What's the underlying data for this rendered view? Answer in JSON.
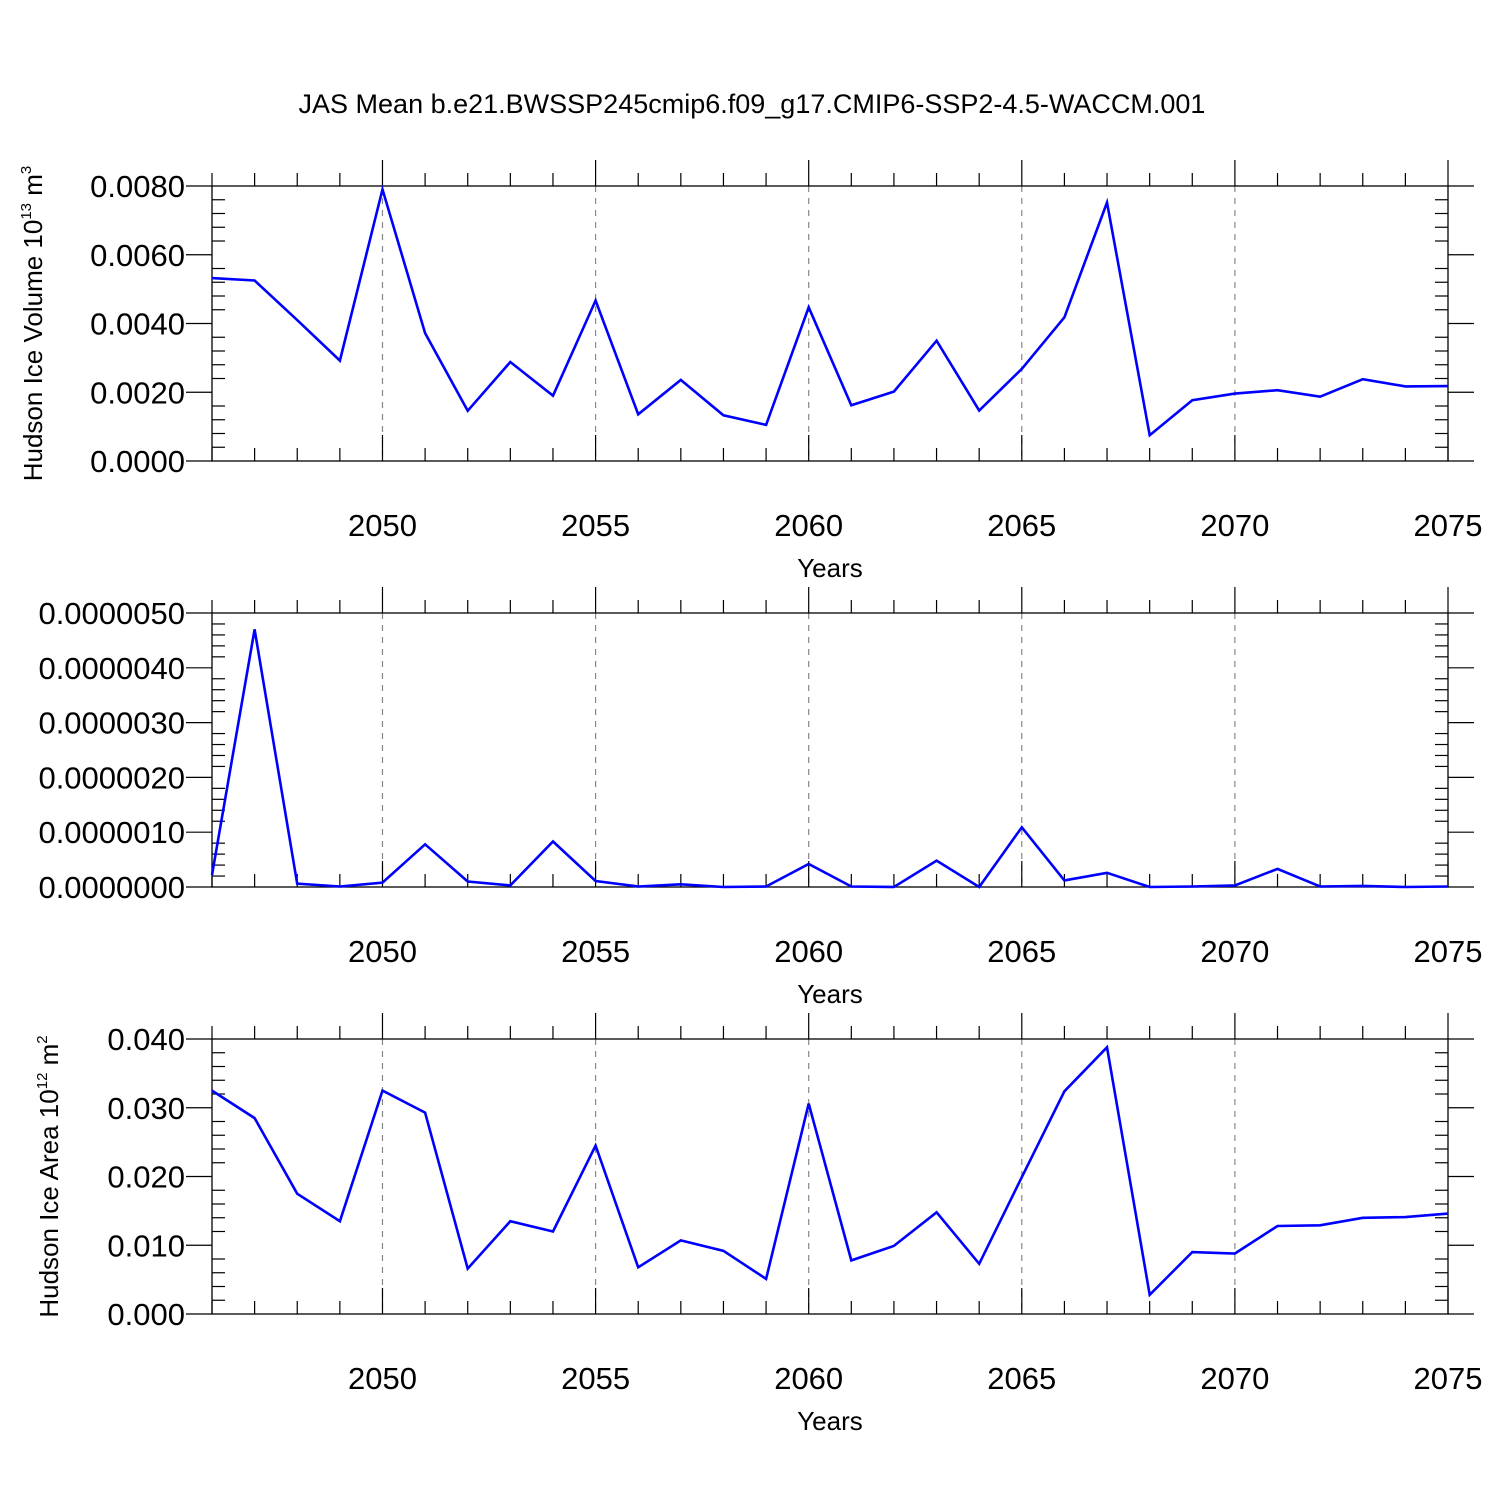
{
  "title": "JAS Mean b.e21.BWSSP245cmip6.f09_g17.CMIP6-SSP2-4.5-WACCM.001",
  "line_color": "#0000ff",
  "chart_data": [
    {
      "type": "line",
      "xlabel": "Years",
      "ylabel": "Hudson Ice Volume 10",
      "ylabel_exp": "13",
      "ylabel_unit": " m",
      "ylabel_unit_exp": "3",
      "xlim": [
        2046,
        2075
      ],
      "ylim": [
        0,
        0.008
      ],
      "y_decimals": 4,
      "yticks": [
        0,
        0.002,
        0.004,
        0.006,
        0.008
      ],
      "xticks": [
        2050,
        2055,
        2060,
        2065,
        2070,
        2075
      ],
      "grid": "vertical dashed at major x ticks",
      "x": [
        2046,
        2047,
        2048,
        2049,
        2050,
        2051,
        2052,
        2053,
        2054,
        2055,
        2056,
        2057,
        2058,
        2059,
        2060,
        2061,
        2062,
        2063,
        2064,
        2065,
        2066,
        2067,
        2068,
        2069,
        2070,
        2071,
        2072,
        2073,
        2074,
        2075
      ],
      "values": [
        0.00532,
        0.00525,
        0.0041,
        0.00292,
        0.0079,
        0.00372,
        0.00146,
        0.00288,
        0.0019,
        0.00467,
        0.00136,
        0.00236,
        0.00133,
        0.00105,
        0.00447,
        0.00162,
        0.00202,
        0.0035,
        0.00147,
        0.00268,
        0.00418,
        0.00752,
        0.00075,
        0.00177,
        0.00196,
        0.00206,
        0.00187,
        0.00238,
        0.00217,
        0.00218
      ]
    },
    {
      "type": "line",
      "xlabel": "Years",
      "ylabel": "",
      "xlim": [
        2046,
        2075
      ],
      "ylim": [
        0,
        5e-06
      ],
      "y_decimals": 7,
      "yticks": [
        0,
        1e-06,
        2e-06,
        3e-06,
        4e-06,
        5e-06
      ],
      "xticks": [
        2050,
        2055,
        2060,
        2065,
        2070,
        2075
      ],
      "grid": "vertical dashed at major x ticks",
      "x": [
        2046,
        2047,
        2048,
        2049,
        2050,
        2051,
        2052,
        2053,
        2054,
        2055,
        2056,
        2057,
        2058,
        2059,
        2060,
        2061,
        2062,
        2063,
        2064,
        2065,
        2066,
        2067,
        2068,
        2069,
        2070,
        2071,
        2072,
        2073,
        2074,
        2075
      ],
      "values": [
        2.2e-07,
        4.7e-06,
        6e-08,
        1e-08,
        8e-08,
        7.8e-07,
        1e-07,
        3e-08,
        8.3e-07,
        1.1e-07,
        1e-08,
        5e-08,
        0.0,
        1e-08,
        4.2e-07,
        1e-08,
        0.0,
        4.8e-07,
        0.0,
        1.09e-06,
        1.2e-07,
        2.6e-07,
        0.0,
        1e-08,
        3e-08,
        3.3e-07,
        1e-08,
        2e-08,
        0.0,
        1e-08
      ]
    },
    {
      "type": "line",
      "xlabel": "Years",
      "ylabel": "Hudson Ice Area 10",
      "ylabel_exp": "12",
      "ylabel_unit": " m",
      "ylabel_unit_exp": "2",
      "xlim": [
        2046,
        2075
      ],
      "ylim": [
        0,
        0.04
      ],
      "y_decimals": 3,
      "yticks": [
        0,
        0.01,
        0.02,
        0.03,
        0.04
      ],
      "xticks": [
        2050,
        2055,
        2060,
        2065,
        2070,
        2075
      ],
      "grid": "vertical dashed at major x ticks",
      "x": [
        2046,
        2047,
        2048,
        2049,
        2050,
        2051,
        2052,
        2053,
        2054,
        2055,
        2056,
        2057,
        2058,
        2059,
        2060,
        2061,
        2062,
        2063,
        2064,
        2065,
        2066,
        2067,
        2068,
        2069,
        2070,
        2071,
        2072,
        2073,
        2074,
        2075
      ],
      "values": [
        0.0325,
        0.0285,
        0.0175,
        0.0135,
        0.0325,
        0.0293,
        0.0066,
        0.0135,
        0.012,
        0.0245,
        0.0068,
        0.0107,
        0.0092,
        0.0051,
        0.0306,
        0.0078,
        0.0099,
        0.0148,
        0.0073,
        0.0199,
        0.0324,
        0.0388,
        0.0028,
        0.009,
        0.0088,
        0.0128,
        0.0129,
        0.014,
        0.0141,
        0.0146
      ]
    }
  ]
}
